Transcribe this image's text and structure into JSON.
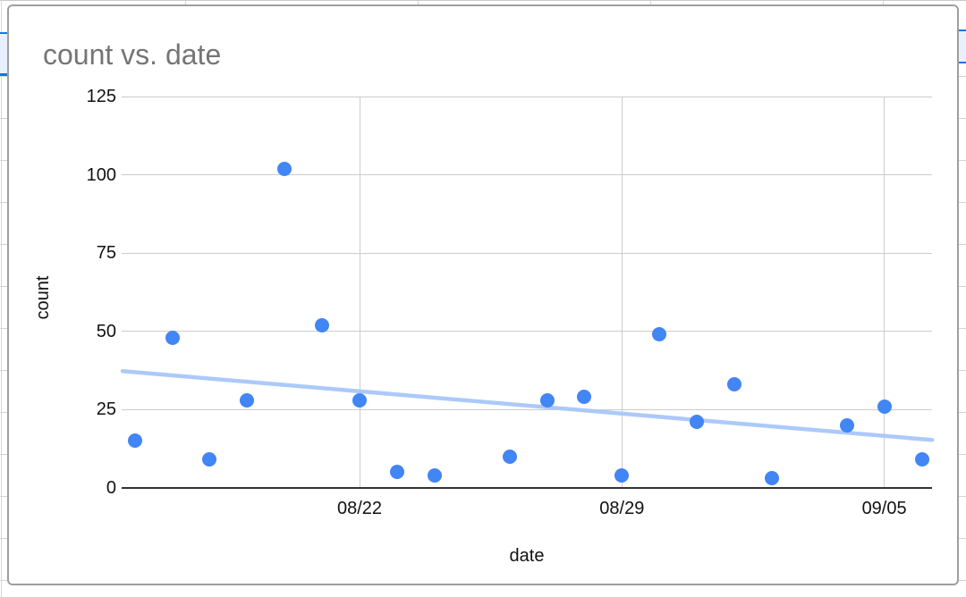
{
  "chart_data": {
    "type": "scatter",
    "title": "count vs. date",
    "xlabel": "date",
    "ylabel": "count",
    "x_tick_labels": [
      "08/22",
      "08/29",
      "09/05"
    ],
    "y_ticks": [
      0,
      25,
      50,
      75,
      100,
      125
    ],
    "ylim": [
      0,
      125
    ],
    "x_range_dates": [
      "08/16",
      "09/06"
    ],
    "grid": true,
    "legend_position": "none",
    "points": [
      {
        "date": "08/16",
        "count": 15
      },
      {
        "date": "08/17",
        "count": 48
      },
      {
        "date": "08/18",
        "count": 9
      },
      {
        "date": "08/19",
        "count": 28
      },
      {
        "date": "08/20",
        "count": 102
      },
      {
        "date": "08/21",
        "count": 52
      },
      {
        "date": "08/22",
        "count": 28
      },
      {
        "date": "08/23",
        "count": 5
      },
      {
        "date": "08/24",
        "count": 4
      },
      {
        "date": "08/26",
        "count": 10
      },
      {
        "date": "08/27",
        "count": 28
      },
      {
        "date": "08/28",
        "count": 29
      },
      {
        "date": "08/29",
        "count": 4
      },
      {
        "date": "08/30",
        "count": 49
      },
      {
        "date": "08/31",
        "count": 21
      },
      {
        "date": "09/01",
        "count": 33
      },
      {
        "date": "09/02",
        "count": 3
      },
      {
        "date": "09/04",
        "count": 20
      },
      {
        "date": "09/05",
        "count": 26
      },
      {
        "date": "09/06",
        "count": 9
      }
    ],
    "trendline": {
      "type": "linear",
      "value_at_left_edge": 37.2,
      "value_at_right_edge": 15.2
    },
    "colors": {
      "point": "#4285f4",
      "trendline": "#a8c7fa",
      "gridline": "#cccccc",
      "axis_line": "#333333",
      "title_text": "#757575",
      "tick_text": "#111111",
      "axis_title_text": "#111111",
      "card_border": "#9e9e9e",
      "selection_border": "#1a73e8",
      "selection_fill": "#e8f0fe"
    }
  }
}
